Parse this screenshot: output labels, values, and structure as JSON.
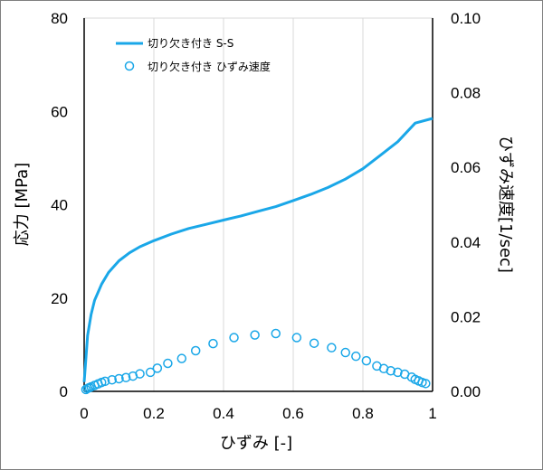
{
  "chart_data": {
    "type": "line+scatter",
    "xlabel": "ひずみ [-]",
    "ylabel_left": "応力 [MPa]",
    "ylabel_right": "ひずみ速度[1/sec]",
    "xlim": [
      0,
      1
    ],
    "ylim_left": [
      0,
      80
    ],
    "ylim_right": [
      0,
      0.1
    ],
    "x_ticks": [
      "0",
      "0.2",
      "0.4",
      "0.6",
      "0.8",
      "1"
    ],
    "x_tick_values": [
      0,
      0.2,
      0.4,
      0.6,
      0.8,
      1.0
    ],
    "y_left_ticks": [
      "0",
      "20",
      "40",
      "60",
      "80"
    ],
    "y_left_tick_values": [
      0,
      20,
      40,
      60,
      80
    ],
    "y_right_ticks": [
      "0.00",
      "0.02",
      "0.04",
      "0.06",
      "0.08",
      "0.10"
    ],
    "y_right_tick_values": [
      0,
      0.02,
      0.04,
      0.06,
      0.08,
      0.1
    ],
    "grid": "vertical",
    "legend_position": "top-left",
    "colors": {
      "series": "#1aa7e8",
      "grid": "#d9d9d9",
      "frame": "#7f7f7f"
    },
    "series": [
      {
        "name": "切り欠き付き S-S",
        "kind": "line",
        "axis": "left",
        "x": [
          0,
          0.005,
          0.01,
          0.02,
          0.03,
          0.05,
          0.07,
          0.1,
          0.13,
          0.16,
          0.2,
          0.25,
          0.3,
          0.35,
          0.4,
          0.45,
          0.5,
          0.55,
          0.6,
          0.65,
          0.7,
          0.75,
          0.8,
          0.85,
          0.9,
          0.95,
          1.0
        ],
        "y": [
          2,
          7,
          12,
          16.5,
          19.5,
          23,
          25.5,
          28,
          29.7,
          31,
          32.3,
          33.7,
          34.9,
          35.8,
          36.7,
          37.6,
          38.6,
          39.6,
          40.9,
          42.2,
          43.7,
          45.5,
          47.7,
          50.6,
          53.5,
          57.5,
          58.5
        ]
      },
      {
        "name": "切り欠き付き ひずみ速度",
        "kind": "scatter",
        "axis": "right",
        "x": [
          0.005,
          0.01,
          0.015,
          0.02,
          0.03,
          0.04,
          0.05,
          0.06,
          0.08,
          0.1,
          0.12,
          0.14,
          0.16,
          0.19,
          0.21,
          0.24,
          0.28,
          0.32,
          0.37,
          0.43,
          0.49,
          0.55,
          0.61,
          0.66,
          0.71,
          0.75,
          0.78,
          0.81,
          0.84,
          0.86,
          0.88,
          0.9,
          0.92,
          0.94,
          0.95,
          0.96,
          0.97,
          0.98
        ],
        "y": [
          0.0005,
          0.0008,
          0.001,
          0.0012,
          0.0016,
          0.002,
          0.0024,
          0.0027,
          0.0031,
          0.0034,
          0.0037,
          0.0041,
          0.0047,
          0.0051,
          0.0062,
          0.0075,
          0.0088,
          0.0109,
          0.0128,
          0.0144,
          0.0151,
          0.0155,
          0.0144,
          0.0129,
          0.0117,
          0.0104,
          0.0094,
          0.0082,
          0.0068,
          0.0061,
          0.0055,
          0.0051,
          0.0046,
          0.0038,
          0.0032,
          0.0028,
          0.0024,
          0.0021
        ]
      }
    ]
  }
}
